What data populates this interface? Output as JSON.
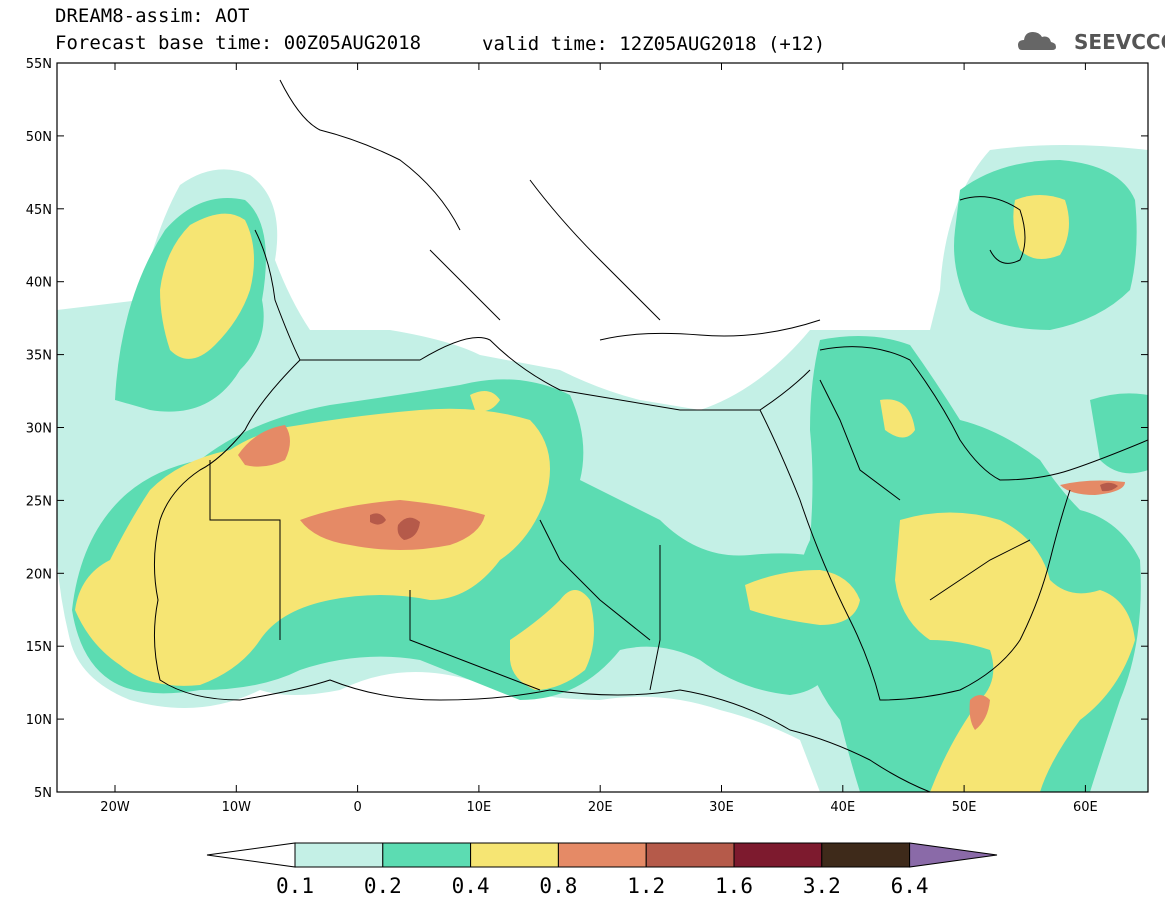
{
  "header": {
    "model_title": "DREAM8-assim: AOT",
    "base_time_text": "Forecast base time: 00Z05AUG2018",
    "valid_time_text": "valid time: 12Z05AUG2018 (+12)",
    "logo_text": "SEEVCCC"
  },
  "axes": {
    "lat_labels": [
      "55N",
      "50N",
      "45N",
      "40N",
      "35N",
      "30N",
      "25N",
      "20N",
      "15N",
      "10N",
      "5N"
    ],
    "lon_labels": [
      "20W",
      "10W",
      "0",
      "10E",
      "20E",
      "30E",
      "40E",
      "50E",
      "60E"
    ]
  },
  "colorbar": {
    "labels": [
      "0.1",
      "0.2",
      "0.4",
      "0.8",
      "1.2",
      "1.6",
      "3.2",
      "6.4"
    ],
    "colors": [
      "#c4f0e6",
      "#5cdcb2",
      "#f6e573",
      "#e58a66",
      "#b55a4a",
      "#7d1a2e",
      "#3e2a1a",
      "#8a6aa8"
    ]
  },
  "colors": {
    "c1": "#c4f0e6",
    "c2": "#5cdcb2",
    "c3": "#f6e573",
    "c4": "#e58a66",
    "c5": "#b55a4a"
  }
}
